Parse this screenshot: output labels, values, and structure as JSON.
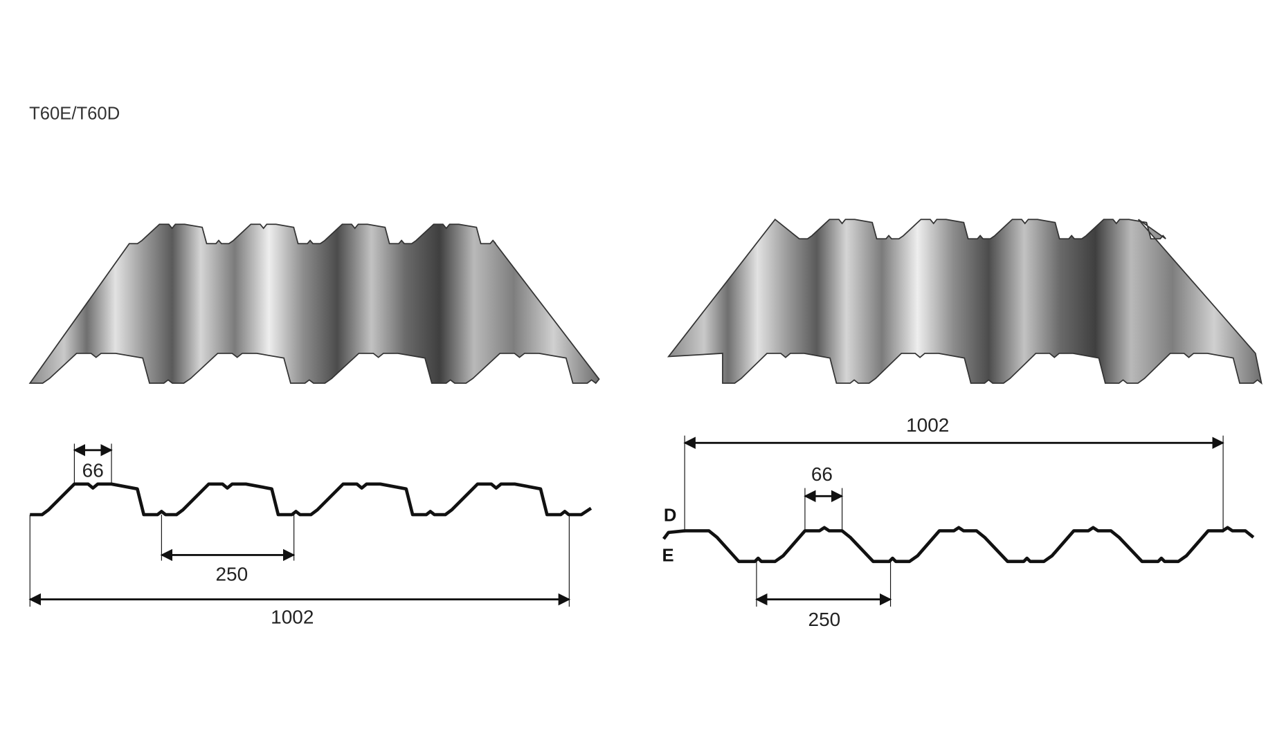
{
  "title": "T60E/T60D",
  "profiles": [
    {
      "dimensions": {
        "rib_top": 66,
        "pitch": 250,
        "cover_width": 1002
      }
    },
    {
      "dimensions": {
        "cover_width": 1002,
        "rib_top": 66,
        "pitch": 250
      },
      "side_labels": [
        "D",
        "E"
      ]
    }
  ]
}
